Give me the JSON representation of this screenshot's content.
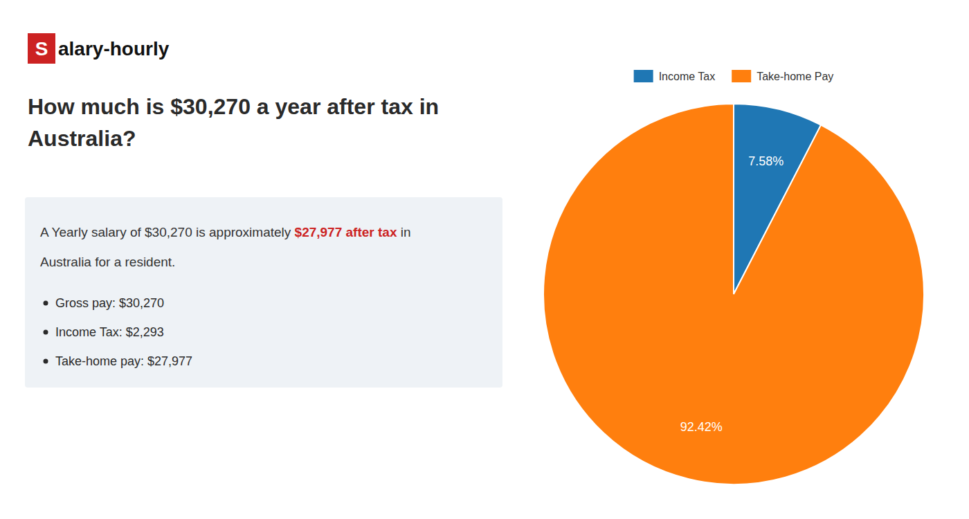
{
  "chart_data": {
    "type": "pie",
    "title": "How much is $30,270 a year after tax in Australia?",
    "categories": [
      "Income Tax",
      "Take-home Pay"
    ],
    "values": [
      7.58,
      92.42
    ],
    "value_labels": [
      "7.58%",
      "92.42%"
    ],
    "data_labels": true,
    "legend": "top",
    "annotations": [
      {
        "text": "S",
        "color": "#cc2222"
      },
      {
        "text": "alary-hourly"
      },
      {
        "text": "A Yearly salary of $30,270 is approximately "
      },
      {
        "text": "$27,977 after tax",
        "color": "#cc2222"
      },
      {
        "text": " in"
      },
      {
        "text": "Australia for a resident."
      },
      {
        "text": "Gross pay: $30,270"
      },
      {
        "text": "Income Tax: $2,293"
      },
      {
        "text": "Take-home pay: $27,977"
      }
    ]
  }
}
